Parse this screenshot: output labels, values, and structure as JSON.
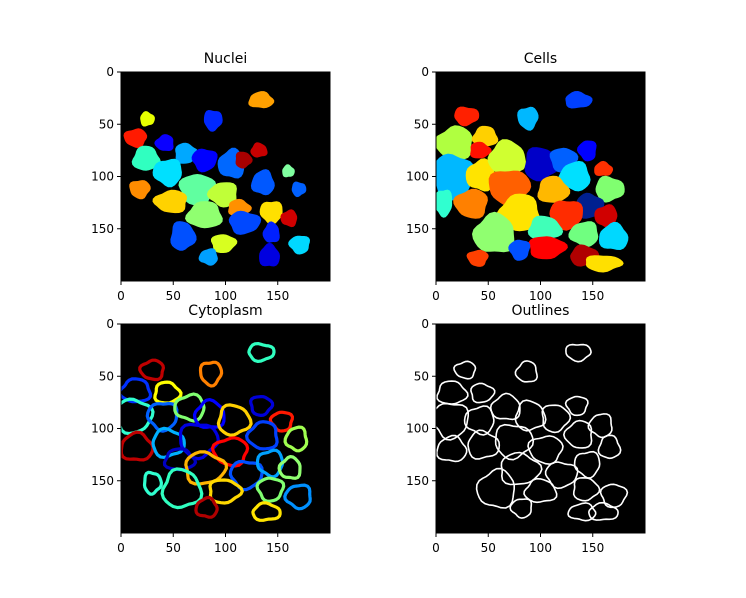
{
  "chart_data": [
    {
      "type": "heatmap",
      "title": "Nuclei",
      "xlabel": "",
      "ylabel": "",
      "xlim": [
        0,
        200
      ],
      "ylim": [
        200,
        0
      ],
      "xticks": [
        0,
        50,
        100,
        150
      ],
      "yticks": [
        0,
        50,
        100,
        150
      ],
      "grid": false,
      "colormap": "jet",
      "regions": [
        {
          "cx": 134,
          "cy": 27,
          "rx": 12,
          "ry": 8,
          "color": "#ffa000"
        },
        {
          "cx": 25,
          "cy": 45,
          "rx": 7,
          "ry": 7,
          "color": "#e8ff00"
        },
        {
          "cx": 88,
          "cy": 46,
          "rx": 9,
          "ry": 10,
          "color": "#0028ff"
        },
        {
          "cx": 14,
          "cy": 63,
          "rx": 11,
          "ry": 9,
          "color": "#ff1a00"
        },
        {
          "cx": 42,
          "cy": 68,
          "rx": 9,
          "ry": 8,
          "color": "#0a00ff"
        },
        {
          "cx": 24,
          "cy": 83,
          "rx": 13,
          "ry": 12,
          "color": "#30ffc0"
        },
        {
          "cx": 62,
          "cy": 78,
          "rx": 11,
          "ry": 10,
          "color": "#00a8ff"
        },
        {
          "cx": 80,
          "cy": 84,
          "rx": 12,
          "ry": 11,
          "color": "#0000ff"
        },
        {
          "cx": 45,
          "cy": 96,
          "rx": 14,
          "ry": 13,
          "color": "#00e0ff"
        },
        {
          "cx": 106,
          "cy": 88,
          "rx": 13,
          "ry": 14,
          "color": "#0068ff"
        },
        {
          "cx": 132,
          "cy": 75,
          "rx": 8,
          "ry": 7,
          "color": "#c80000"
        },
        {
          "cx": 117,
          "cy": 84,
          "rx": 8,
          "ry": 8,
          "color": "#a80000"
        },
        {
          "cx": 73,
          "cy": 112,
          "rx": 17,
          "ry": 15,
          "color": "#60ffa0"
        },
        {
          "cx": 98,
          "cy": 117,
          "rx": 14,
          "ry": 12,
          "color": "#c0ff38"
        },
        {
          "cx": 136,
          "cy": 106,
          "rx": 11,
          "ry": 12,
          "color": "#0058ff"
        },
        {
          "cx": 160,
          "cy": 95,
          "rx": 6,
          "ry": 6,
          "color": "#80ffa0"
        },
        {
          "cx": 170,
          "cy": 112,
          "rx": 7,
          "ry": 7,
          "color": "#0060ff"
        },
        {
          "cx": 18,
          "cy": 112,
          "rx": 10,
          "ry": 9,
          "color": "#ff8c00"
        },
        {
          "cx": 48,
          "cy": 124,
          "rx": 16,
          "ry": 11,
          "color": "#ffd200"
        },
        {
          "cx": 80,
          "cy": 137,
          "rx": 17,
          "ry": 13,
          "color": "#90ff70"
        },
        {
          "cx": 113,
          "cy": 130,
          "rx": 11,
          "ry": 8,
          "color": "#ff9000"
        },
        {
          "cx": 118,
          "cy": 144,
          "rx": 15,
          "ry": 11,
          "color": "#0048ff"
        },
        {
          "cx": 144,
          "cy": 134,
          "rx": 11,
          "ry": 11,
          "color": "#ffe000"
        },
        {
          "cx": 161,
          "cy": 140,
          "rx": 8,
          "ry": 8,
          "color": "#d00000"
        },
        {
          "cx": 144,
          "cy": 154,
          "rx": 8,
          "ry": 10,
          "color": "#0020ff"
        },
        {
          "cx": 59,
          "cy": 157,
          "rx": 12,
          "ry": 14,
          "color": "#0050ff"
        },
        {
          "cx": 98,
          "cy": 164,
          "rx": 12,
          "ry": 9,
          "color": "#d8ff20"
        },
        {
          "cx": 171,
          "cy": 165,
          "rx": 10,
          "ry": 9,
          "color": "#00d8ff"
        },
        {
          "cx": 84,
          "cy": 177,
          "rx": 9,
          "ry": 8,
          "color": "#00a0ff"
        },
        {
          "cx": 142,
          "cy": 176,
          "rx": 10,
          "ry": 11,
          "color": "#0000e0"
        }
      ]
    },
    {
      "type": "heatmap",
      "title": "Cells",
      "xlabel": "",
      "ylabel": "",
      "xlim": [
        0,
        200
      ],
      "ylim": [
        200,
        0
      ],
      "xticks": [
        0,
        50,
        100,
        150
      ],
      "yticks": [
        0,
        50,
        100,
        150
      ],
      "grid": false,
      "colormap": "jet",
      "regions": [
        {
          "cx": 136,
          "cy": 27,
          "rx": 13,
          "ry": 8,
          "color": "#0040ff"
        },
        {
          "cx": 29,
          "cy": 42,
          "rx": 12,
          "ry": 9,
          "color": "#ff2000"
        },
        {
          "cx": 88,
          "cy": 44,
          "rx": 10,
          "ry": 11,
          "color": "#00b8ff"
        },
        {
          "cx": 18,
          "cy": 68,
          "rx": 18,
          "ry": 16,
          "color": "#b0ff40"
        },
        {
          "cx": 47,
          "cy": 62,
          "rx": 12,
          "ry": 10,
          "color": "#ffd000"
        },
        {
          "cx": 42,
          "cy": 75,
          "rx": 10,
          "ry": 8,
          "color": "#ff1000"
        },
        {
          "cx": 16,
          "cy": 100,
          "rx": 20,
          "ry": 22,
          "color": "#00b8ff"
        },
        {
          "cx": 7,
          "cy": 125,
          "rx": 9,
          "ry": 13,
          "color": "#30ffd0"
        },
        {
          "cx": 43,
          "cy": 99,
          "rx": 14,
          "ry": 15,
          "color": "#ffe400"
        },
        {
          "cx": 68,
          "cy": 82,
          "rx": 18,
          "ry": 16,
          "color": "#d0ff30"
        },
        {
          "cx": 100,
          "cy": 88,
          "rx": 16,
          "ry": 16,
          "color": "#0000c8"
        },
        {
          "cx": 122,
          "cy": 84,
          "rx": 13,
          "ry": 12,
          "color": "#0060ff"
        },
        {
          "cx": 145,
          "cy": 75,
          "rx": 9,
          "ry": 10,
          "color": "#0000ff"
        },
        {
          "cx": 133,
          "cy": 100,
          "rx": 15,
          "ry": 14,
          "color": "#00e0ff"
        },
        {
          "cx": 160,
          "cy": 93,
          "rx": 9,
          "ry": 7,
          "color": "#ff3000"
        },
        {
          "cx": 166,
          "cy": 112,
          "rx": 14,
          "ry": 12,
          "color": "#80ff70"
        },
        {
          "cx": 70,
          "cy": 110,
          "rx": 20,
          "ry": 17,
          "color": "#ff6000"
        },
        {
          "cx": 34,
          "cy": 126,
          "rx": 16,
          "ry": 14,
          "color": "#ff8000"
        },
        {
          "cx": 80,
          "cy": 135,
          "rx": 20,
          "ry": 18,
          "color": "#ffe400"
        },
        {
          "cx": 112,
          "cy": 113,
          "rx": 15,
          "ry": 13,
          "color": "#ffb800"
        },
        {
          "cx": 147,
          "cy": 128,
          "rx": 13,
          "ry": 12,
          "color": "#00208f"
        },
        {
          "cx": 125,
          "cy": 136,
          "rx": 16,
          "ry": 14,
          "color": "#ff2c00"
        },
        {
          "cx": 163,
          "cy": 138,
          "rx": 11,
          "ry": 11,
          "color": "#d00000"
        },
        {
          "cx": 56,
          "cy": 155,
          "rx": 20,
          "ry": 19,
          "color": "#90ff70"
        },
        {
          "cx": 104,
          "cy": 150,
          "rx": 16,
          "ry": 12,
          "color": "#40ffb8"
        },
        {
          "cx": 106,
          "cy": 168,
          "rx": 18,
          "ry": 11,
          "color": "#ff0000"
        },
        {
          "cx": 80,
          "cy": 170,
          "rx": 10,
          "ry": 10,
          "color": "#0050ff"
        },
        {
          "cx": 142,
          "cy": 155,
          "rx": 14,
          "ry": 12,
          "color": "#70ff80"
        },
        {
          "cx": 170,
          "cy": 158,
          "rx": 14,
          "ry": 13,
          "color": "#00d8ff"
        },
        {
          "cx": 142,
          "cy": 176,
          "rx": 14,
          "ry": 10,
          "color": "#b00000"
        },
        {
          "cx": 160,
          "cy": 183,
          "rx": 18,
          "ry": 8,
          "color": "#ffe000"
        },
        {
          "cx": 40,
          "cy": 178,
          "rx": 10,
          "ry": 8,
          "color": "#ff4000"
        }
      ]
    },
    {
      "type": "heatmap",
      "title": "Cytoplasm",
      "xlabel": "",
      "ylabel": "",
      "xlim": [
        0,
        200
      ],
      "ylim": [
        200,
        0
      ],
      "xticks": [
        0,
        50,
        100,
        150
      ],
      "yticks": [
        0,
        50,
        100,
        150
      ],
      "grid": false,
      "colormap": "jet",
      "regions": [
        {
          "cx": 134,
          "cy": 27,
          "rx": 12,
          "ry": 8,
          "color": "#30ffc0"
        },
        {
          "cx": 86,
          "cy": 47,
          "rx": 10,
          "ry": 11,
          "color": "#ff8000"
        },
        {
          "cx": 30,
          "cy": 44,
          "rx": 11,
          "ry": 9,
          "color": "#c00000"
        },
        {
          "cx": 14,
          "cy": 64,
          "rx": 14,
          "ry": 11,
          "color": "#0030ff"
        },
        {
          "cx": 44,
          "cy": 66,
          "rx": 12,
          "ry": 10,
          "color": "#ffff00"
        },
        {
          "cx": 12,
          "cy": 88,
          "rx": 17,
          "ry": 16,
          "color": "#30ffd0"
        },
        {
          "cx": 40,
          "cy": 88,
          "rx": 14,
          "ry": 13,
          "color": "#0060ff"
        },
        {
          "cx": 66,
          "cy": 80,
          "rx": 14,
          "ry": 12,
          "color": "#80ff70"
        },
        {
          "cx": 85,
          "cy": 87,
          "rx": 14,
          "ry": 13,
          "color": "#0000ff"
        },
        {
          "cx": 108,
          "cy": 92,
          "rx": 15,
          "ry": 14,
          "color": "#ffd000"
        },
        {
          "cx": 134,
          "cy": 78,
          "rx": 10,
          "ry": 9,
          "color": "#0000d8"
        },
        {
          "cx": 154,
          "cy": 93,
          "rx": 10,
          "ry": 9,
          "color": "#ff1800"
        },
        {
          "cx": 168,
          "cy": 110,
          "rx": 10,
          "ry": 11,
          "color": "#a0ff50"
        },
        {
          "cx": 15,
          "cy": 118,
          "rx": 15,
          "ry": 13,
          "color": "#c00000"
        },
        {
          "cx": 45,
          "cy": 114,
          "rx": 15,
          "ry": 13,
          "color": "#00b0ff"
        },
        {
          "cx": 74,
          "cy": 111,
          "rx": 18,
          "ry": 16,
          "color": "#0000e0"
        },
        {
          "cx": 105,
          "cy": 122,
          "rx": 16,
          "ry": 13,
          "color": "#ff0000"
        },
        {
          "cx": 136,
          "cy": 107,
          "rx": 14,
          "ry": 13,
          "color": "#0040ff"
        },
        {
          "cx": 56,
          "cy": 130,
          "rx": 14,
          "ry": 10,
          "color": "#0000c0"
        },
        {
          "cx": 80,
          "cy": 138,
          "rx": 19,
          "ry": 15,
          "color": "#ffb400"
        },
        {
          "cx": 120,
          "cy": 144,
          "rx": 15,
          "ry": 13,
          "color": "#0050ff"
        },
        {
          "cx": 143,
          "cy": 133,
          "rx": 12,
          "ry": 12,
          "color": "#00a0ff"
        },
        {
          "cx": 162,
          "cy": 138,
          "rx": 10,
          "ry": 10,
          "color": "#90ff70"
        },
        {
          "cx": 58,
          "cy": 158,
          "rx": 18,
          "ry": 18,
          "color": "#30ffc0"
        },
        {
          "cx": 99,
          "cy": 160,
          "rx": 15,
          "ry": 11,
          "color": "#ffd800"
        },
        {
          "cx": 143,
          "cy": 158,
          "rx": 12,
          "ry": 11,
          "color": "#80ff70"
        },
        {
          "cx": 170,
          "cy": 165,
          "rx": 12,
          "ry": 11,
          "color": "#0090ff"
        },
        {
          "cx": 82,
          "cy": 176,
          "rx": 10,
          "ry": 9,
          "color": "#b00000"
        },
        {
          "cx": 139,
          "cy": 180,
          "rx": 13,
          "ry": 8,
          "color": "#ffe400"
        },
        {
          "cx": 30,
          "cy": 152,
          "rx": 8,
          "ry": 10,
          "color": "#30ffd0"
        }
      ]
    },
    {
      "type": "heatmap",
      "title": "Outlines",
      "xlabel": "",
      "ylabel": "",
      "xlim": [
        0,
        200
      ],
      "ylim": [
        200,
        0
      ],
      "xticks": [
        0,
        50,
        100,
        150
      ],
      "yticks": [
        0,
        50,
        100,
        150
      ],
      "grid": false,
      "colormap": "gray",
      "regions": [
        {
          "cx": 136,
          "cy": 27,
          "rx": 12,
          "ry": 8,
          "color": "#ffffff"
        },
        {
          "cx": 28,
          "cy": 44,
          "rx": 10,
          "ry": 8,
          "color": "#ffffff"
        },
        {
          "cx": 87,
          "cy": 46,
          "rx": 10,
          "ry": 10,
          "color": "#ffffff"
        },
        {
          "cx": 15,
          "cy": 66,
          "rx": 14,
          "ry": 11,
          "color": "#ffffff"
        },
        {
          "cx": 44,
          "cy": 66,
          "rx": 11,
          "ry": 9,
          "color": "#ffffff"
        },
        {
          "cx": 14,
          "cy": 92,
          "rx": 17,
          "ry": 17,
          "color": "#ffffff"
        },
        {
          "cx": 42,
          "cy": 92,
          "rx": 14,
          "ry": 13,
          "color": "#ffffff"
        },
        {
          "cx": 67,
          "cy": 80,
          "rx": 14,
          "ry": 12,
          "color": "#ffffff"
        },
        {
          "cx": 90,
          "cy": 88,
          "rx": 14,
          "ry": 14,
          "color": "#ffffff"
        },
        {
          "cx": 114,
          "cy": 90,
          "rx": 13,
          "ry": 13,
          "color": "#ffffff"
        },
        {
          "cx": 135,
          "cy": 78,
          "rx": 10,
          "ry": 9,
          "color": "#ffffff"
        },
        {
          "cx": 158,
          "cy": 97,
          "rx": 11,
          "ry": 11,
          "color": "#ffffff"
        },
        {
          "cx": 15,
          "cy": 120,
          "rx": 14,
          "ry": 12,
          "color": "#ffffff"
        },
        {
          "cx": 45,
          "cy": 116,
          "rx": 15,
          "ry": 13,
          "color": "#ffffff"
        },
        {
          "cx": 74,
          "cy": 112,
          "rx": 18,
          "ry": 16,
          "color": "#ffffff"
        },
        {
          "cx": 105,
          "cy": 120,
          "rx": 16,
          "ry": 13,
          "color": "#ffffff"
        },
        {
          "cx": 137,
          "cy": 106,
          "rx": 13,
          "ry": 13,
          "color": "#ffffff"
        },
        {
          "cx": 166,
          "cy": 118,
          "rx": 10,
          "ry": 11,
          "color": "#ffffff"
        },
        {
          "cx": 80,
          "cy": 139,
          "rx": 19,
          "ry": 15,
          "color": "#ffffff"
        },
        {
          "cx": 120,
          "cy": 144,
          "rx": 15,
          "ry": 12,
          "color": "#ffffff"
        },
        {
          "cx": 145,
          "cy": 134,
          "rx": 12,
          "ry": 12,
          "color": "#ffffff"
        },
        {
          "cx": 58,
          "cy": 158,
          "rx": 18,
          "ry": 18,
          "color": "#ffffff"
        },
        {
          "cx": 100,
          "cy": 160,
          "rx": 15,
          "ry": 11,
          "color": "#ffffff"
        },
        {
          "cx": 143,
          "cy": 158,
          "rx": 12,
          "ry": 11,
          "color": "#ffffff"
        },
        {
          "cx": 170,
          "cy": 164,
          "rx": 12,
          "ry": 11,
          "color": "#ffffff"
        },
        {
          "cx": 82,
          "cy": 176,
          "rx": 10,
          "ry": 9,
          "color": "#ffffff"
        },
        {
          "cx": 140,
          "cy": 180,
          "rx": 13,
          "ry": 8,
          "color": "#ffffff"
        },
        {
          "cx": 160,
          "cy": 180,
          "rx": 14,
          "ry": 8,
          "color": "#ffffff"
        }
      ]
    }
  ]
}
